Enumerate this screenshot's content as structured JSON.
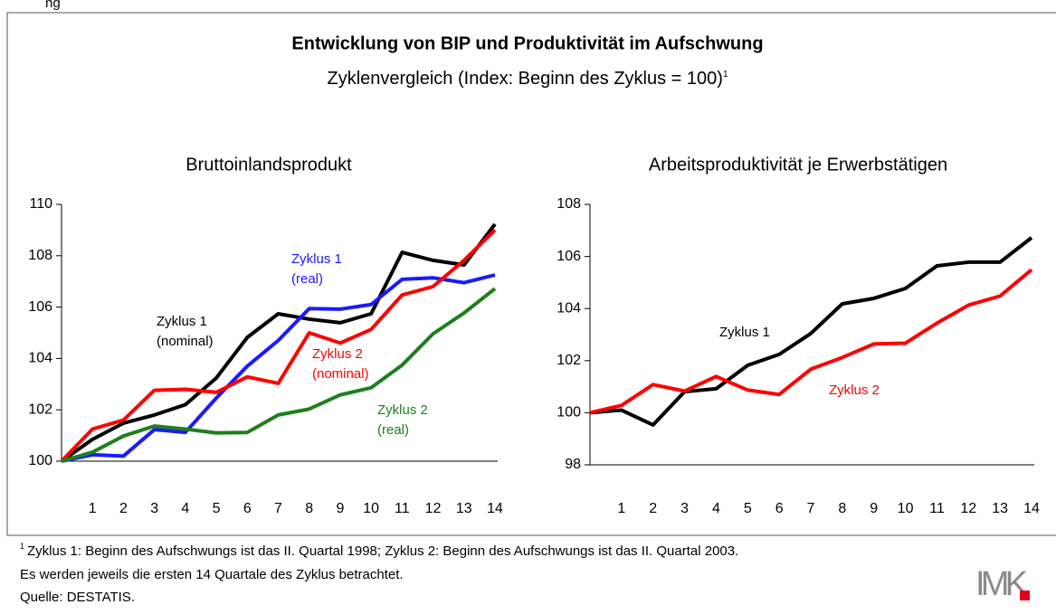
{
  "corner_label": "ng",
  "header": {
    "title": "Entwicklung von BIP und Produktivität im Aufschwung",
    "subtitle": "Zyklenvergleich (Index: Beginn des Zyklus = 100)",
    "subtitle_note": "1"
  },
  "chart_data": [
    {
      "type": "line",
      "title": "Bruttoinlandsprodukt",
      "x": [
        0,
        1,
        2,
        3,
        4,
        5,
        6,
        7,
        8,
        9,
        10,
        11,
        12,
        13,
        14
      ],
      "xlim": [
        0,
        14
      ],
      "xticks": [
        1,
        2,
        3,
        4,
        5,
        6,
        7,
        8,
        9,
        10,
        11,
        12,
        13,
        14
      ],
      "ylim": [
        100,
        110
      ],
      "yticks": [
        100,
        102,
        104,
        106,
        108,
        110
      ],
      "series": [
        {
          "name": "Zyklus 1",
          "qualifier": "(nominal)",
          "color": "#000000",
          "values": [
            100,
            100.85,
            101.48,
            101.8,
            102.2,
            103.24,
            104.82,
            105.74,
            105.53,
            105.39,
            105.74,
            108.13,
            107.82,
            107.64,
            109.23
          ]
        },
        {
          "name": "Zyklus 1",
          "qualifier": "(real)",
          "color": "#1a1aff",
          "values": [
            100,
            100.25,
            100.2,
            101.23,
            101.12,
            102.46,
            103.7,
            104.7,
            105.94,
            105.92,
            106.1,
            107.08,
            107.14,
            106.95,
            107.25
          ]
        },
        {
          "name": "Zyklus 2",
          "qualifier": "(nominal)",
          "color": "#ff0000",
          "values": [
            100,
            101.25,
            101.6,
            102.76,
            102.8,
            102.68,
            103.28,
            103.03,
            105.0,
            104.6,
            105.13,
            106.47,
            106.8,
            107.82,
            109.0
          ]
        },
        {
          "name": "Zyklus 2",
          "qualifier": "(real)",
          "color": "#1e7f1e",
          "values": [
            100,
            100.35,
            100.98,
            101.37,
            101.25,
            101.1,
            101.12,
            101.8,
            102.03,
            102.58,
            102.86,
            103.74,
            104.96,
            105.77,
            106.72
          ]
        }
      ]
    },
    {
      "type": "line",
      "title": "Arbeitsproduktivität je Erwerbstätigen",
      "x": [
        0,
        1,
        2,
        3,
        4,
        5,
        6,
        7,
        8,
        9,
        10,
        11,
        12,
        13,
        14
      ],
      "xlim": [
        0,
        14
      ],
      "xticks": [
        1,
        2,
        3,
        4,
        5,
        6,
        7,
        8,
        9,
        10,
        11,
        12,
        13,
        14
      ],
      "ylim": [
        98,
        108
      ],
      "yticks": [
        98,
        100,
        102,
        104,
        106,
        108
      ],
      "series": [
        {
          "name": "Zyklus 1",
          "color": "#000000",
          "values": [
            100,
            100.1,
            99.53,
            100.81,
            100.92,
            101.82,
            102.24,
            103.04,
            104.18,
            104.39,
            104.77,
            105.64,
            105.78,
            105.78,
            106.72
          ]
        },
        {
          "name": "Zyklus 2",
          "color": "#ff0000",
          "values": [
            100,
            100.28,
            101.08,
            100.83,
            101.39,
            100.87,
            100.7,
            101.67,
            102.12,
            102.64,
            102.67,
            103.44,
            104.13,
            104.48,
            105.49
          ]
        }
      ]
    }
  ],
  "footnotes": [
    {
      "marker": "1",
      "text": "Zyklus 1: Beginn des Aufschwungs ist das II. Quartal 1998; Zyklus 2: Beginn des Aufschwungs ist das II. Quartal 2003."
    },
    {
      "text": "Es werden jeweils die ersten 14 Quartale des Zyklus betrachtet."
    },
    {
      "text": "Quelle: DESTATIS."
    }
  ],
  "logo": "IMK"
}
